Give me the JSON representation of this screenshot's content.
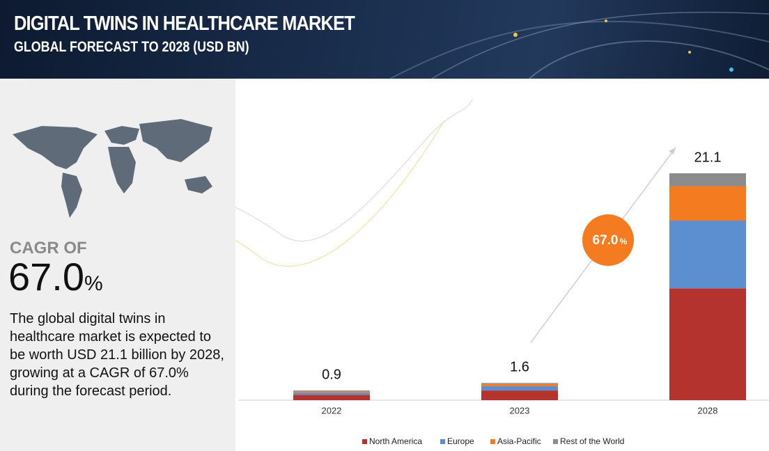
{
  "header": {
    "title": "DIGITAL TWINS IN HEALTHCARE MARKET",
    "subtitle": "GLOBAL FORECAST TO 2028 (USD BN)"
  },
  "summary": {
    "cagr_label": "CAGR OF",
    "cagr_value": "67.0",
    "cagr_unit": "%",
    "description": "The global digital twins in healthcare market is expected to be worth USD 21.1 billion by 2028, growing at a CAGR of 67.0% during the forecast period."
  },
  "chart_data": {
    "type": "stacked_bar",
    "categories": [
      "2022",
      "2023",
      "2028"
    ],
    "series": [
      {
        "name": "North America",
        "color": "#b5332e",
        "values": [
          0.5,
          0.9,
          10.4
        ]
      },
      {
        "name": "Europe",
        "color": "#5b8fd0",
        "values": [
          0.2,
          0.4,
          6.3
        ]
      },
      {
        "name": "Asia-Pacific",
        "color": "#f47b20",
        "values": [
          0.1,
          0.2,
          3.2
        ]
      },
      {
        "name": "Rest of the World",
        "color": "#8c8c8c",
        "values": [
          0.1,
          0.1,
          1.2
        ]
      }
    ],
    "totals": [
      0.9,
      1.6,
      21.1
    ],
    "legend": "bottom"
  }
}
